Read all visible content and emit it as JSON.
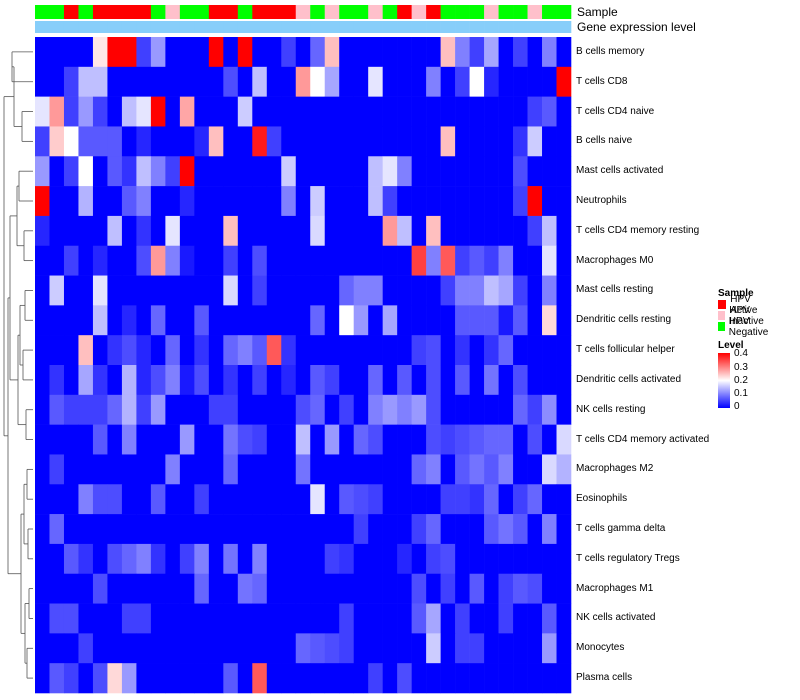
{
  "chart_data": {
    "type": "heatmap",
    "annotation_tracks": [
      "Sample",
      "Gene expression level"
    ],
    "rows": [
      "B cells memory",
      "T cells CD8",
      "T cells CD4 naive",
      "B cells naive",
      "Mast cells activated",
      "Neutrophils",
      "T cells CD4 memory resting",
      "Macrophages M0",
      "Mast cells resting",
      "Dendritic cells resting",
      "T cells follicular helper",
      "Dendritic cells activated",
      "NK cells resting",
      "T cells CD4 memory activated",
      "Macrophages M2",
      "Eosinophils",
      "T cells gamma delta",
      "T cells regulatory  Tregs",
      "Macrophages M1",
      "NK cells activated",
      "Monocytes",
      "Plasma cells"
    ],
    "sample_groups": [
      "N",
      "N",
      "A",
      "N",
      "A",
      "A",
      "A",
      "A",
      "N",
      "I",
      "N",
      "N",
      "A",
      "A",
      "N",
      "A",
      "A",
      "A",
      "I",
      "N",
      "I",
      "N",
      "N",
      "I",
      "N",
      "A",
      "I",
      "A",
      "N",
      "N",
      "N",
      "I",
      "N",
      "N",
      "I",
      "N",
      "N"
    ],
    "gene_expression_level": [
      "low",
      "low",
      "low",
      "low",
      "low",
      "low",
      "low",
      "low",
      "low",
      "low",
      "low",
      "low",
      "low",
      "low",
      "low",
      "low",
      "low",
      "low",
      "low",
      "low",
      "low",
      "low",
      "low",
      "low",
      "low",
      "low",
      "low",
      "low",
      "low",
      "low",
      "low",
      "low",
      "low",
      "low",
      "low",
      "low",
      "low"
    ],
    "values": [
      [
        0,
        0,
        0,
        0,
        0.22,
        0.4,
        0.4,
        0.05,
        0.12,
        0,
        0,
        0,
        0.4,
        0,
        0.4,
        0,
        0,
        0.05,
        0,
        0.08,
        0.25,
        0,
        0,
        0,
        0,
        0,
        0,
        0,
        0.25,
        0.1,
        0.05,
        0.13,
        0,
        0.05,
        0,
        0.1,
        0
      ],
      [
        0,
        0,
        0.05,
        0.15,
        0.15,
        0,
        0,
        0,
        0,
        0,
        0,
        0,
        0,
        0.06,
        0,
        0.15,
        0,
        0,
        0.28,
        0.2,
        0.13,
        0,
        0,
        0.18,
        0,
        0,
        0,
        0.1,
        0,
        0.05,
        0.2,
        0.03,
        0,
        0,
        0,
        0,
        0.4
      ],
      [
        0.18,
        0.28,
        0.05,
        0.12,
        0.05,
        0,
        0.15,
        0.18,
        0.4,
        0,
        0.27,
        0,
        0,
        0,
        0.16,
        0,
        0,
        0,
        0,
        0,
        0,
        0,
        0,
        0,
        0,
        0,
        0,
        0,
        0,
        0,
        0,
        0,
        0,
        0,
        0.05,
        0.07,
        0
      ],
      [
        0.05,
        0.24,
        0.2,
        0.07,
        0.07,
        0.07,
        0,
        0.03,
        0,
        0,
        0,
        0.03,
        0.25,
        0,
        0,
        0.38,
        0.05,
        0,
        0,
        0,
        0,
        0,
        0,
        0,
        0,
        0,
        0,
        0,
        0.25,
        0,
        0,
        0,
        0,
        0.04,
        0.16,
        0,
        0
      ],
      [
        0.12,
        0,
        0.05,
        0.2,
        0,
        0.07,
        0.04,
        0.15,
        0.1,
        0.05,
        0.4,
        0,
        0,
        0,
        0,
        0,
        0,
        0.16,
        0,
        0,
        0,
        0,
        0,
        0.15,
        0.18,
        0.1,
        0,
        0,
        0,
        0,
        0,
        0,
        0,
        0.06,
        0,
        0,
        0
      ],
      [
        0.4,
        0,
        0,
        0.14,
        0,
        0,
        0.07,
        0.1,
        0,
        0,
        0.03,
        0,
        0,
        0,
        0,
        0,
        0,
        0.1,
        0,
        0.16,
        0,
        0,
        0,
        0.15,
        0.05,
        0,
        0,
        0,
        0,
        0,
        0,
        0,
        0,
        0.05,
        0.4,
        0,
        0
      ],
      [
        0.03,
        0,
        0,
        0,
        0,
        0.15,
        0,
        0.04,
        0,
        0.18,
        0,
        0,
        0,
        0.25,
        0,
        0,
        0,
        0,
        0,
        0.17,
        0,
        0,
        0,
        0,
        0.28,
        0.15,
        0,
        0.25,
        0,
        0,
        0,
        0,
        0,
        0,
        0.05,
        0.15,
        0
      ],
      [
        0,
        0,
        0.05,
        0,
        0.03,
        0,
        0,
        0.06,
        0.28,
        0.1,
        0.02,
        0,
        0,
        0.05,
        0,
        0.06,
        0,
        0,
        0,
        0,
        0,
        0,
        0,
        0,
        0,
        0,
        0.35,
        0.1,
        0.33,
        0.05,
        0.07,
        0.05,
        0.1,
        0,
        0,
        0.18,
        0
      ],
      [
        0,
        0.16,
        0,
        0,
        0.18,
        0,
        0,
        0,
        0,
        0,
        0,
        0,
        0,
        0.17,
        0,
        0.05,
        0,
        0,
        0,
        0,
        0,
        0.08,
        0.1,
        0.1,
        0,
        0,
        0,
        0,
        0.05,
        0.1,
        0.1,
        0.15,
        0.13,
        0.05,
        0,
        0.1,
        0
      ],
      [
        0,
        0,
        0,
        0,
        0.15,
        0,
        0.03,
        0,
        0.08,
        0,
        0,
        0.07,
        0,
        0,
        0,
        0,
        0,
        0,
        0,
        0.08,
        0,
        0.2,
        0.12,
        0,
        0.13,
        0,
        0,
        0,
        0,
        0.07,
        0.07,
        0.07,
        0.02,
        0.07,
        0,
        0.23,
        0
      ],
      [
        0,
        0,
        0,
        0.25,
        0,
        0.04,
        0.06,
        0.03,
        0,
        0.08,
        0,
        0.04,
        0,
        0.08,
        0.1,
        0.07,
        0.33,
        0.04,
        0,
        0,
        0,
        0,
        0,
        0,
        0,
        0,
        0.05,
        0.06,
        0,
        0.04,
        0,
        0.04,
        0.08,
        0,
        0,
        0,
        0
      ],
      [
        0,
        0.04,
        0,
        0.13,
        0.04,
        0,
        0.14,
        0.03,
        0.06,
        0.1,
        0.02,
        0.06,
        0,
        0.04,
        0,
        0.05,
        0,
        0.03,
        0,
        0.07,
        0.05,
        0,
        0,
        0.08,
        0,
        0.07,
        0,
        0.06,
        0,
        0.07,
        0,
        0.09,
        0,
        0.06,
        0,
        0,
        0
      ],
      [
        0,
        0.07,
        0.05,
        0.05,
        0.05,
        0.08,
        0.14,
        0.05,
        0.12,
        0,
        0,
        0,
        0.05,
        0.05,
        0,
        0,
        0,
        0,
        0.06,
        0.08,
        0,
        0.05,
        0,
        0.1,
        0.12,
        0.1,
        0.12,
        0.06,
        0,
        0,
        0,
        0,
        0,
        0.08,
        0.05,
        0.11,
        0
      ],
      [
        0,
        0,
        0,
        0,
        0.07,
        0,
        0.1,
        0,
        0,
        0,
        0.12,
        0,
        0,
        0.09,
        0.06,
        0.05,
        0,
        0,
        0.15,
        0,
        0.12,
        0,
        0.08,
        0.06,
        0,
        0,
        0,
        0.06,
        0.05,
        0.06,
        0.07,
        0.08,
        0.08,
        0,
        0.06,
        0,
        0.17
      ],
      [
        0,
        0.05,
        0,
        0,
        0,
        0,
        0,
        0,
        0,
        0.1,
        0,
        0,
        0,
        0.08,
        0,
        0,
        0,
        0,
        0.09,
        0,
        0,
        0,
        0,
        0,
        0,
        0,
        0.08,
        0.1,
        0,
        0.07,
        0.09,
        0.07,
        0.1,
        0,
        0,
        0.17,
        0.14
      ],
      [
        0,
        0,
        0,
        0.1,
        0.06,
        0.06,
        0,
        0,
        0.07,
        0,
        0,
        0.05,
        0,
        0,
        0,
        0,
        0,
        0,
        0,
        0.18,
        0,
        0.07,
        0.06,
        0.05,
        0,
        0,
        0,
        0,
        0.05,
        0.05,
        0.04,
        0.08,
        0,
        0.05,
        0.08,
        0,
        0
      ],
      [
        0,
        0.08,
        0,
        0,
        0,
        0,
        0,
        0,
        0,
        0,
        0,
        0,
        0,
        0,
        0,
        0,
        0,
        0,
        0,
        0,
        0,
        0,
        0.05,
        0,
        0,
        0,
        0.05,
        0.08,
        0,
        0,
        0,
        0.07,
        0.09,
        0.07,
        0,
        0.1,
        0
      ],
      [
        0,
        0,
        0.07,
        0.04,
        0,
        0.06,
        0.08,
        0.1,
        0.04,
        0,
        0.05,
        0.1,
        0,
        0.09,
        0,
        0.1,
        0,
        0,
        0,
        0,
        0.05,
        0.04,
        0,
        0,
        0,
        0.03,
        0,
        0.05,
        0.06,
        0,
        0,
        0,
        0,
        0,
        0,
        0,
        0
      ],
      [
        0,
        0,
        0,
        0,
        0.06,
        0,
        0,
        0,
        0,
        0,
        0,
        0.08,
        0,
        0,
        0.09,
        0.08,
        0,
        0,
        0,
        0,
        0,
        0,
        0,
        0,
        0,
        0,
        0.06,
        0,
        0.05,
        0,
        0.07,
        0,
        0.05,
        0.07,
        0.06,
        0,
        0
      ],
      [
        0,
        0.06,
        0.06,
        0,
        0,
        0,
        0.05,
        0.05,
        0,
        0,
        0,
        0,
        0,
        0,
        0,
        0,
        0,
        0,
        0,
        0,
        0,
        0.05,
        0,
        0,
        0,
        0,
        0.07,
        0.13,
        0,
        0.05,
        0,
        0,
        0.05,
        0,
        0,
        0.07,
        0
      ],
      [
        0,
        0,
        0,
        0.05,
        0,
        0,
        0,
        0,
        0,
        0,
        0,
        0,
        0,
        0,
        0,
        0,
        0,
        0,
        0.08,
        0.07,
        0.06,
        0.05,
        0,
        0,
        0,
        0,
        0,
        0.16,
        0,
        0.05,
        0.05,
        0,
        0,
        0,
        0,
        0.12,
        0
      ],
      [
        0,
        0.07,
        0.05,
        0,
        0.06,
        0.23,
        0.12,
        0,
        0,
        0,
        0,
        0,
        0,
        0.07,
        0,
        0.33,
        0,
        0,
        0,
        0,
        0,
        0,
        0,
        0.05,
        0,
        0.06,
        0,
        0,
        0,
        0,
        0,
        0,
        0,
        0,
        0,
        0,
        0
      ]
    ],
    "legend_sample": {
      "title": "Sample",
      "entries": [
        {
          "code": "A",
          "label": "HPV Active",
          "color": "#ff0000"
        },
        {
          "code": "I",
          "label": "HPV Inactive",
          "color": "#ffc0cb"
        },
        {
          "code": "N",
          "label": "HPV Negative",
          "color": "#00ff00"
        }
      ]
    },
    "legend_level": {
      "title": "Level",
      "ticks": [
        "0.4",
        "0.3",
        "0.2",
        "0.1",
        "0"
      ],
      "range": [
        0,
        0.4
      ],
      "colors": {
        "low": "#0000ff",
        "mid": "#ffffff",
        "high": "#ff0000"
      }
    },
    "gene_level_color": "#87cefa"
  }
}
